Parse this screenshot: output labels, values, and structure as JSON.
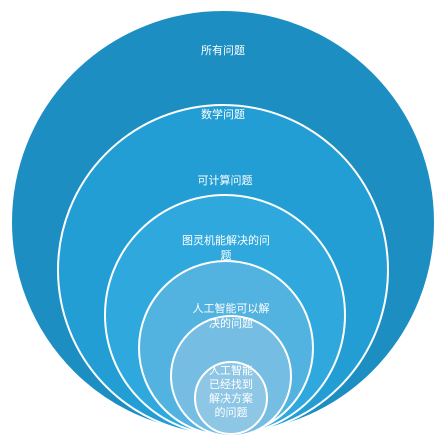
{
  "diagram": {
    "type": "nested-circles",
    "layers": [
      {
        "lines": [
          "所有问题"
        ],
        "color": "#1C8EC2"
      },
      {
        "lines": [
          "数学问题"
        ],
        "color": "#239ED4"
      },
      {
        "lines": [
          "可计算问题"
        ],
        "color": "#2FA8DE"
      },
      {
        "lines": [
          "图灵机能解决的问",
          "题"
        ],
        "color": "#52B2E0"
      },
      {
        "lines": [
          "人工智能可以解",
          "决的问题"
        ],
        "color": "#75BDE2"
      },
      {
        "lines": [
          "人工智能",
          "已经找到",
          "解决方案",
          "的问题"
        ],
        "color": "#8EC7E5"
      }
    ]
  }
}
